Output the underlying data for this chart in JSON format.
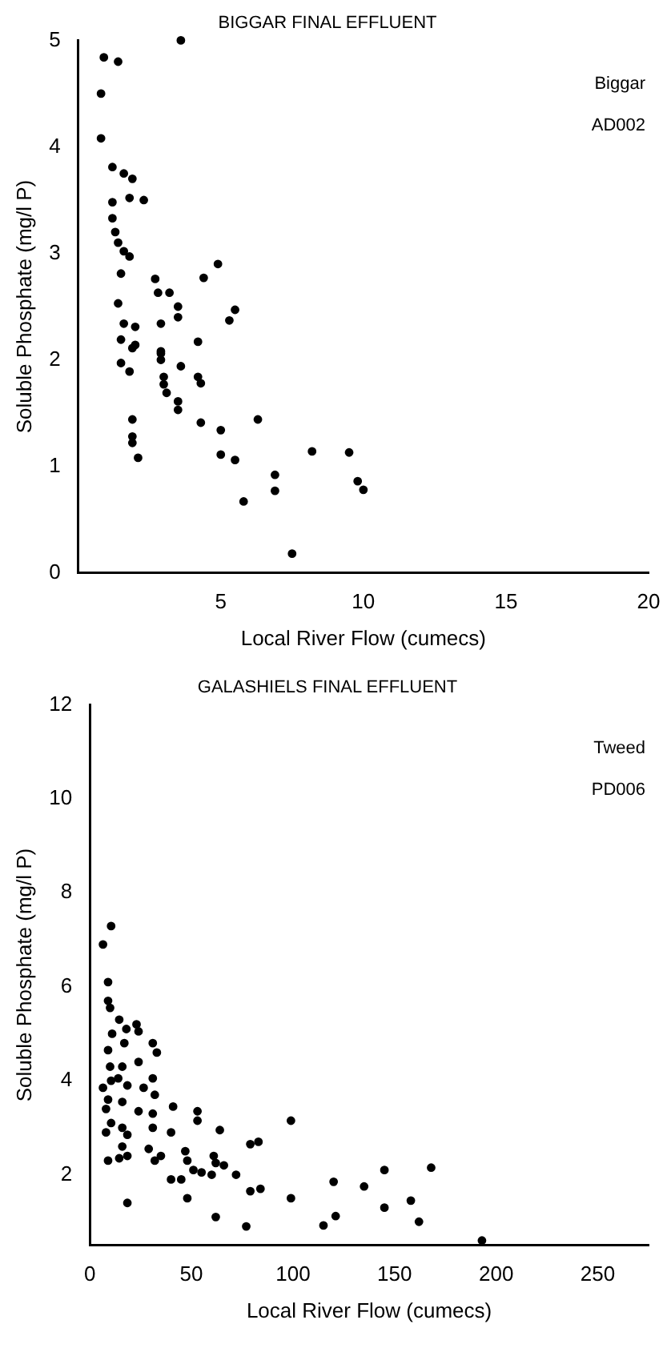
{
  "chart_data": [
    {
      "type": "scatter",
      "title": "BIGGAR FINAL EFFLUENT",
      "xlabel": "Local River Flow (cumecs)",
      "ylabel": "Soluble Phosphate (mg/l P)",
      "annotations": [
        "Biggar",
        "AD002"
      ],
      "xlim": [
        0,
        20
      ],
      "xticks": [
        5,
        10,
        15,
        20
      ],
      "ylim": [
        0,
        5
      ],
      "yticks": [
        0,
        1,
        2,
        3,
        4,
        5
      ],
      "grid": false,
      "legend": false,
      "marker": "circle",
      "series": [
        {
          "color": "#000000",
          "x": [
            0.9,
            1.4,
            0.8,
            0.8,
            3.6,
            1.2,
            1.6,
            1.9,
            1.8,
            2.3,
            1.2,
            1.2,
            1.3,
            1.4,
            1.6,
            1.8,
            1.5,
            2.7,
            2.8,
            4.4,
            4.9,
            3.2,
            1.4,
            3.5,
            3.5,
            5.5,
            5.3,
            1.6,
            2.0,
            2.9,
            1.5,
            4.2,
            2.0,
            2.9,
            1.9,
            2.9,
            2.9,
            1.5,
            1.8,
            3.6,
            4.2,
            4.3,
            3.0,
            3.0,
            3.1,
            3.5,
            3.5,
            4.3,
            5.0,
            6.3,
            1.9,
            1.9,
            1.9,
            2.1,
            5.0,
            5.5,
            8.2,
            9.5,
            6.9,
            6.9,
            5.8,
            9.8,
            10.0,
            7.5
          ],
          "values": [
            4.84,
            4.8,
            4.5,
            4.08,
            5.0,
            3.81,
            3.75,
            3.7,
            3.52,
            3.5,
            3.48,
            3.33,
            3.2,
            3.1,
            3.02,
            2.97,
            2.81,
            2.76,
            2.63,
            2.77,
            2.9,
            2.63,
            2.53,
            2.5,
            2.4,
            2.47,
            2.37,
            2.34,
            2.31,
            2.34,
            2.19,
            2.17,
            2.14,
            2.08,
            2.11,
            2.06,
            2.0,
            1.97,
            1.89,
            1.94,
            1.84,
            1.78,
            1.84,
            1.77,
            1.69,
            1.61,
            1.53,
            1.41,
            1.34,
            1.44,
            1.44,
            1.28,
            1.22,
            1.08,
            1.11,
            1.06,
            1.14,
            1.13,
            0.92,
            0.77,
            0.67,
            0.86,
            0.78,
            0.18
          ]
        }
      ]
    },
    {
      "type": "scatter",
      "title": "GALASHIELS FINAL EFFLUENT",
      "xlabel": "Local River Flow (cumecs)",
      "ylabel": "Soluble Phosphate (mg/l P)",
      "annotations": [
        "Tweed",
        "PD006"
      ],
      "xlim": [
        0,
        275
      ],
      "xticks": [
        0,
        50,
        100,
        150,
        200,
        250
      ],
      "ylim": [
        0.5,
        12
      ],
      "yticks": [
        2,
        4,
        6,
        8,
        10,
        12
      ],
      "grid": false,
      "legend": false,
      "marker": "circle",
      "series": [
        {
          "color": "#000000",
          "x": [
            10.5,
            6.5,
            9,
            9,
            10,
            14.5,
            23,
            24,
            18,
            11,
            9,
            17,
            31,
            33,
            24,
            10,
            16,
            10.5,
            6.5,
            14,
            18.5,
            31,
            26.5,
            9,
            16,
            32,
            41,
            8,
            24,
            53,
            31,
            53,
            64,
            99,
            10.5,
            16,
            31,
            40,
            8,
            18.5,
            79,
            83,
            16,
            29,
            18.5,
            35,
            47,
            61,
            48,
            9,
            14.5,
            32,
            62,
            66,
            51,
            55,
            40,
            45,
            60,
            72,
            79,
            84,
            18.5,
            48,
            99,
            120,
            135,
            145,
            168,
            145,
            158,
            162,
            62,
            77,
            115,
            121,
            193
          ],
          "values": [
            7.29,
            6.9,
            6.1,
            5.7,
            5.55,
            5.3,
            5.2,
            5.05,
            5.1,
            5.0,
            4.65,
            4.8,
            4.8,
            4.6,
            4.4,
            4.3,
            4.3,
            4.0,
            3.85,
            4.05,
            3.9,
            4.05,
            3.85,
            3.6,
            3.55,
            3.7,
            3.45,
            3.4,
            3.35,
            3.35,
            3.3,
            3.15,
            2.95,
            3.15,
            3.1,
            3.0,
            3.0,
            2.9,
            2.9,
            2.85,
            2.65,
            2.7,
            2.6,
            2.55,
            2.4,
            2.4,
            2.5,
            2.4,
            2.3,
            2.3,
            2.35,
            2.3,
            2.25,
            2.2,
            2.1,
            2.05,
            1.9,
            1.9,
            2.0,
            2.0,
            1.65,
            1.7,
            1.4,
            1.5,
            1.5,
            1.85,
            1.75,
            2.1,
            2.15,
            1.3,
            1.45,
            1.0,
            1.1,
            0.9,
            0.92,
            1.12,
            0.6
          ]
        }
      ]
    }
  ]
}
